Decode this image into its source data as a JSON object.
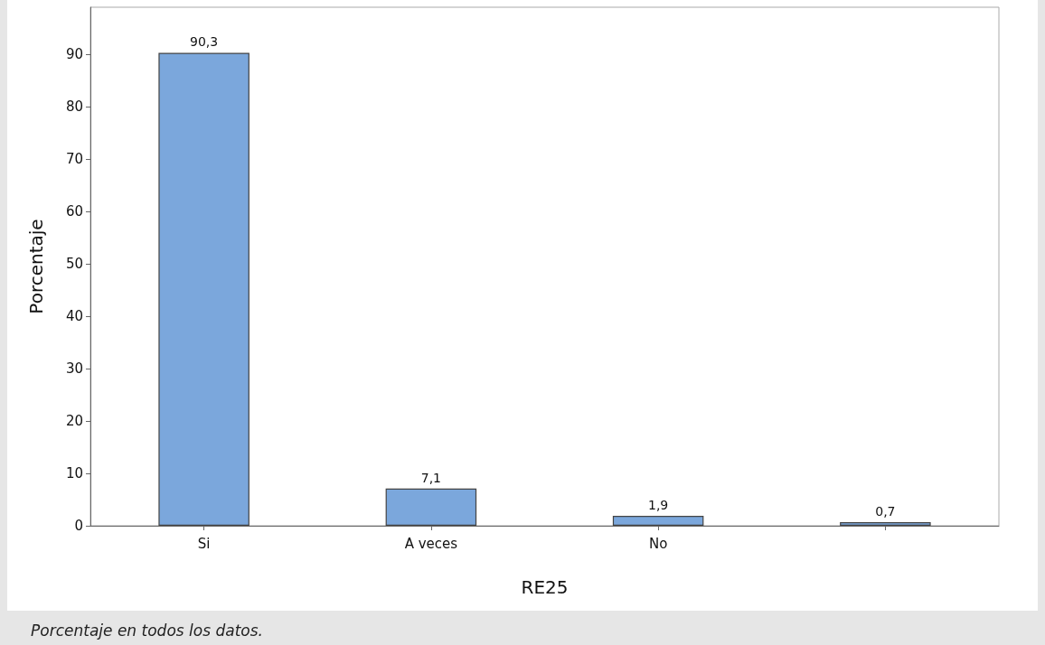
{
  "chart_data": {
    "type": "bar",
    "xlabel": "RE25",
    "ylabel": "Porcentaje",
    "categories": [
      "Si",
      "A veces",
      "No",
      null
    ],
    "values": [
      90.3,
      7.1,
      1.9,
      0.7
    ],
    "color": "#7ba7dc",
    "value_labels": [
      "90,3",
      "7,1",
      "1,9",
      "0,7"
    ],
    "ylim": [
      0,
      99
    ],
    "yticks": [
      0,
      10,
      20,
      30,
      40,
      50,
      60,
      70,
      80,
      90
    ],
    "annotations": [
      "Porcentaje en todos los datos."
    ]
  }
}
